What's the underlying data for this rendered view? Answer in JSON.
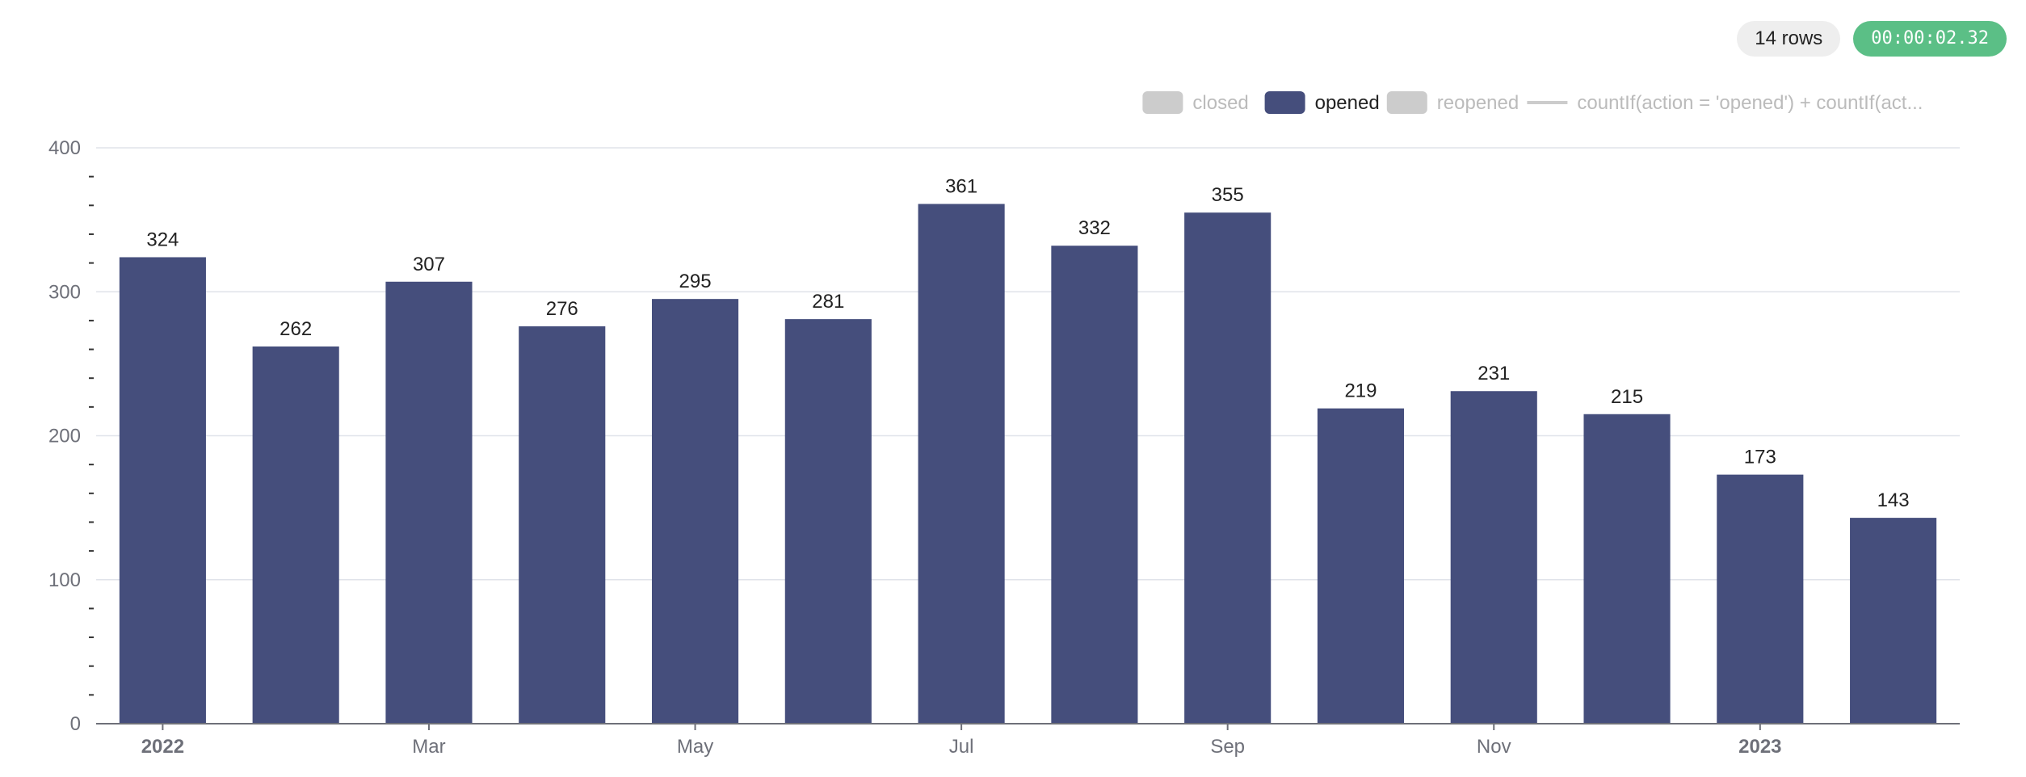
{
  "status": {
    "rows_label": "14 rows",
    "elapsed": "00:00:02.32"
  },
  "colors": {
    "opened": "#454e7c",
    "inactive": "#cccccc",
    "inactive_text": "#bbbbbb",
    "grid": "#e0e3ea",
    "axis_text": "#6e7079"
  },
  "legend": [
    {
      "label": "closed",
      "kind": "bar",
      "active": false
    },
    {
      "label": "opened",
      "kind": "bar",
      "active": true
    },
    {
      "label": "reopened",
      "kind": "bar",
      "active": false
    },
    {
      "label": "countIf(action = 'opened') + countIf(act...",
      "kind": "line",
      "active": false
    }
  ],
  "chart_data": {
    "type": "bar",
    "x": [
      "2022-01",
      "2022-02",
      "2022-03",
      "2022-04",
      "2022-05",
      "2022-06",
      "2022-07",
      "2022-08",
      "2022-09",
      "2022-10",
      "2022-11",
      "2022-12",
      "2023-01",
      "2023-02"
    ],
    "series": [
      {
        "name": "opened",
        "values": [
          324,
          262,
          307,
          276,
          295,
          281,
          361,
          332,
          355,
          219,
          231,
          215,
          173,
          143
        ]
      }
    ],
    "ylim": [
      0,
      400
    ],
    "yticks": [
      "0",
      "100",
      "200",
      "300",
      "400"
    ],
    "xticks": [
      {
        "index": 0,
        "label": "2022",
        "bold": true
      },
      {
        "index": 2,
        "label": "Mar",
        "bold": false
      },
      {
        "index": 4,
        "label": "May",
        "bold": false
      },
      {
        "index": 6,
        "label": "Jul",
        "bold": false
      },
      {
        "index": 8,
        "label": "Sep",
        "bold": false
      },
      {
        "index": 10,
        "label": "Nov",
        "bold": false
      },
      {
        "index": 12,
        "label": "2023",
        "bold": true
      }
    ],
    "grid": true,
    "legend_position": "top-right"
  }
}
